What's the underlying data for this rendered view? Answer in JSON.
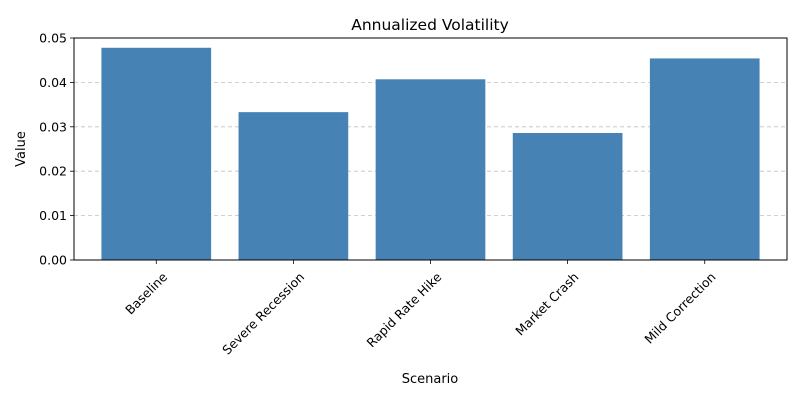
{
  "chart_data": {
    "type": "bar",
    "title": "Annualized Volatility",
    "xlabel": "Scenario",
    "ylabel": "Value",
    "categories": [
      "Baseline",
      "Severe Recession",
      "Rapid Rate Hike",
      "Market Crash",
      "Mild Correction"
    ],
    "values": [
      0.0478,
      0.0333,
      0.0407,
      0.0286,
      0.0454
    ],
    "ylim": [
      0,
      0.05
    ],
    "yticks": [
      "0.00",
      "0.01",
      "0.02",
      "0.03",
      "0.04",
      "0.05"
    ],
    "grid": "horizontal dashed",
    "x_tick_rotation": 45,
    "bar_color": "#4682b4",
    "grid_color": "#c0c0c0"
  }
}
